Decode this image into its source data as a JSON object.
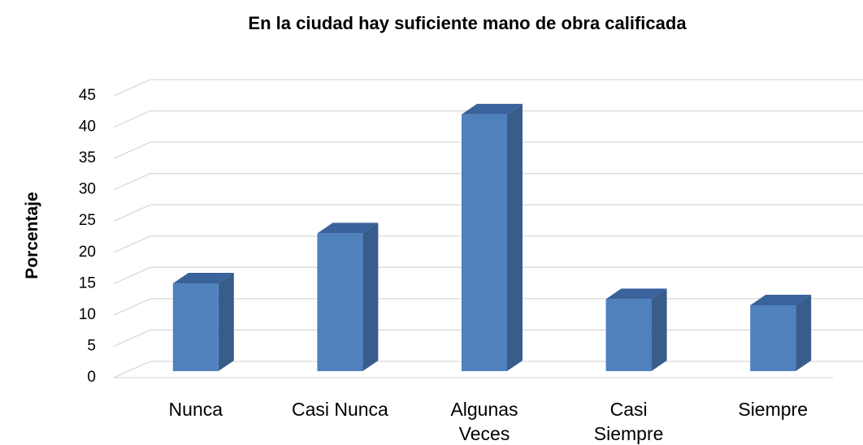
{
  "chart_data": {
    "type": "bar3d",
    "title": "En la ciudad hay suficiente mano de obra calificada",
    "y_label": "Porcentaje",
    "categories": [
      "Nunca",
      "Casi Nunca",
      "Algunas Veces",
      "Casi Siempre",
      "Siempre"
    ],
    "values": [
      14,
      22,
      41,
      11.5,
      10.5
    ],
    "color": "#4f81bd",
    "ylim": [
      0,
      45
    ],
    "yticks": [
      0,
      5,
      10,
      15,
      20,
      25,
      30,
      35,
      40,
      45
    ],
    "grid": true
  }
}
